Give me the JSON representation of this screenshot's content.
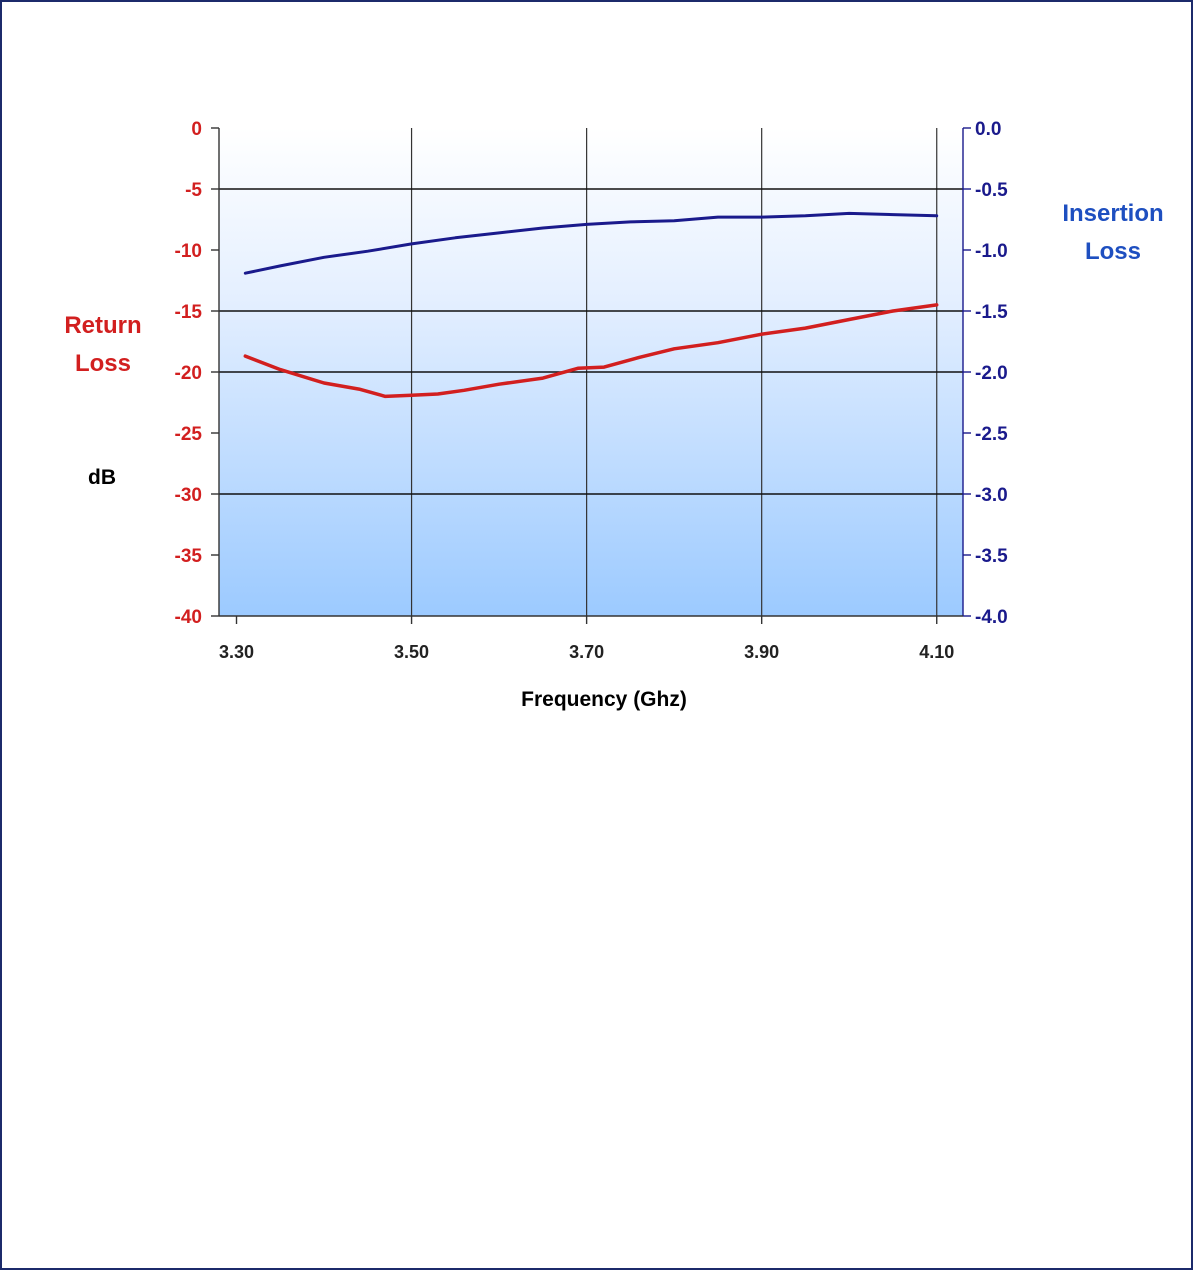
{
  "chart_data": {
    "type": "line",
    "xlabel": "Frequency (Ghz)",
    "left_axis": {
      "label_line1": "Return",
      "label_line2": "Loss",
      "unit": "dB",
      "range": [
        -40,
        0
      ],
      "ticks": [
        0,
        -5,
        -10,
        -15,
        -20,
        -25,
        -30,
        -35,
        -40
      ],
      "tick_labels": [
        "0",
        "-5",
        "-10",
        "-15",
        "-20",
        "-25",
        "-30",
        "-35",
        "-40"
      ],
      "color": "#d21f1f"
    },
    "right_axis": {
      "label_line1": "Insertion",
      "label_line2": "Loss",
      "range": [
        -4.0,
        0.0
      ],
      "ticks": [
        0.0,
        -0.5,
        -1.0,
        -1.5,
        -2.0,
        -2.5,
        -3.0,
        -3.5,
        -4.0
      ],
      "tick_labels": [
        "0.0",
        "-0.5",
        "-1.0",
        "-1.5",
        "-2.0",
        "-2.5",
        "-3.0",
        "-3.5",
        "-4.0"
      ],
      "color": "#1a1a8c"
    },
    "x_axis": {
      "range": [
        3.28,
        4.13
      ],
      "ticks": [
        3.3,
        3.5,
        3.7,
        3.9,
        4.1
      ],
      "tick_labels": [
        "3.30",
        "3.50",
        "3.70",
        "3.90",
        "4.10"
      ]
    },
    "grid": true,
    "series": [
      {
        "axis": "right",
        "color": "#1a1a8c",
        "x": [
          3.31,
          3.35,
          3.4,
          3.45,
          3.5,
          3.55,
          3.6,
          3.65,
          3.7,
          3.75,
          3.8,
          3.85,
          3.9,
          3.95,
          4.0,
          4.05,
          4.1
        ],
        "values": [
          -1.19,
          -1.13,
          -1.06,
          -1.01,
          -0.95,
          -0.9,
          -0.86,
          -0.82,
          -0.79,
          -0.77,
          -0.76,
          -0.73,
          -0.73,
          -0.72,
          -0.7,
          -0.71,
          -0.72
        ]
      },
      {
        "axis": "left",
        "color": "#d21f1f",
        "x": [
          3.31,
          3.35,
          3.4,
          3.44,
          3.47,
          3.5,
          3.53,
          3.56,
          3.6,
          3.65,
          3.69,
          3.72,
          3.76,
          3.8,
          3.85,
          3.9,
          3.95,
          4.0,
          4.05,
          4.1
        ],
        "values": [
          -18.7,
          -19.8,
          -20.9,
          -21.4,
          -22.0,
          -21.9,
          -21.8,
          -21.5,
          -21.0,
          -20.5,
          -19.7,
          -19.6,
          -18.8,
          -18.1,
          -17.6,
          -16.9,
          -16.4,
          -15.7,
          -15.0,
          -14.5
        ]
      }
    ]
  }
}
